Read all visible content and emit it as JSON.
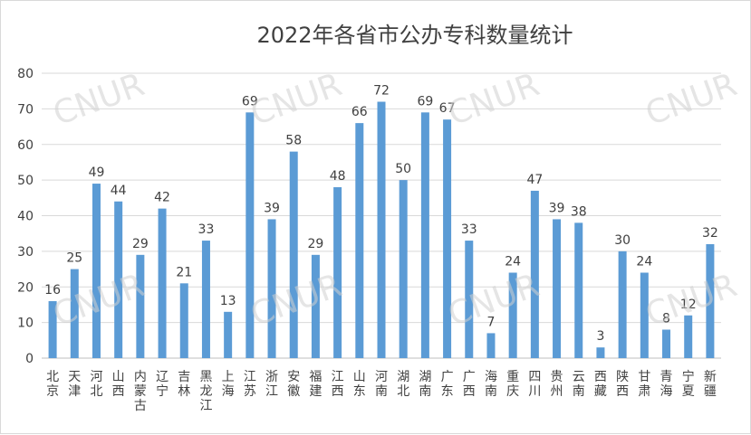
{
  "chart_data": {
    "type": "bar",
    "title": "2022年各省市公办专科数量统计",
    "xlabel": "",
    "ylabel": "",
    "ylim": [
      0,
      80
    ],
    "yticks": [
      0,
      10,
      20,
      30,
      40,
      50,
      60,
      70,
      80
    ],
    "grid": true,
    "legend": "none",
    "bar_color": "#5b9bd5",
    "watermark": "CNUR",
    "categories": [
      "北京",
      "天津",
      "河北",
      "山西",
      "内蒙古",
      "辽宁",
      "吉林",
      "黑龙江",
      "上海",
      "江苏",
      "浙江",
      "安徽",
      "福建",
      "江西",
      "山东",
      "河南",
      "湖北",
      "湖南",
      "广东",
      "广西",
      "海南",
      "重庆",
      "四川",
      "贵州",
      "云南",
      "西藏",
      "陕西",
      "甘肃",
      "青海",
      "宁夏",
      "新疆"
    ],
    "values": [
      16,
      25,
      49,
      44,
      29,
      42,
      21,
      33,
      13,
      69,
      39,
      58,
      29,
      48,
      66,
      72,
      50,
      69,
      67,
      33,
      7,
      24,
      47,
      39,
      38,
      3,
      30,
      24,
      8,
      12,
      32
    ]
  }
}
